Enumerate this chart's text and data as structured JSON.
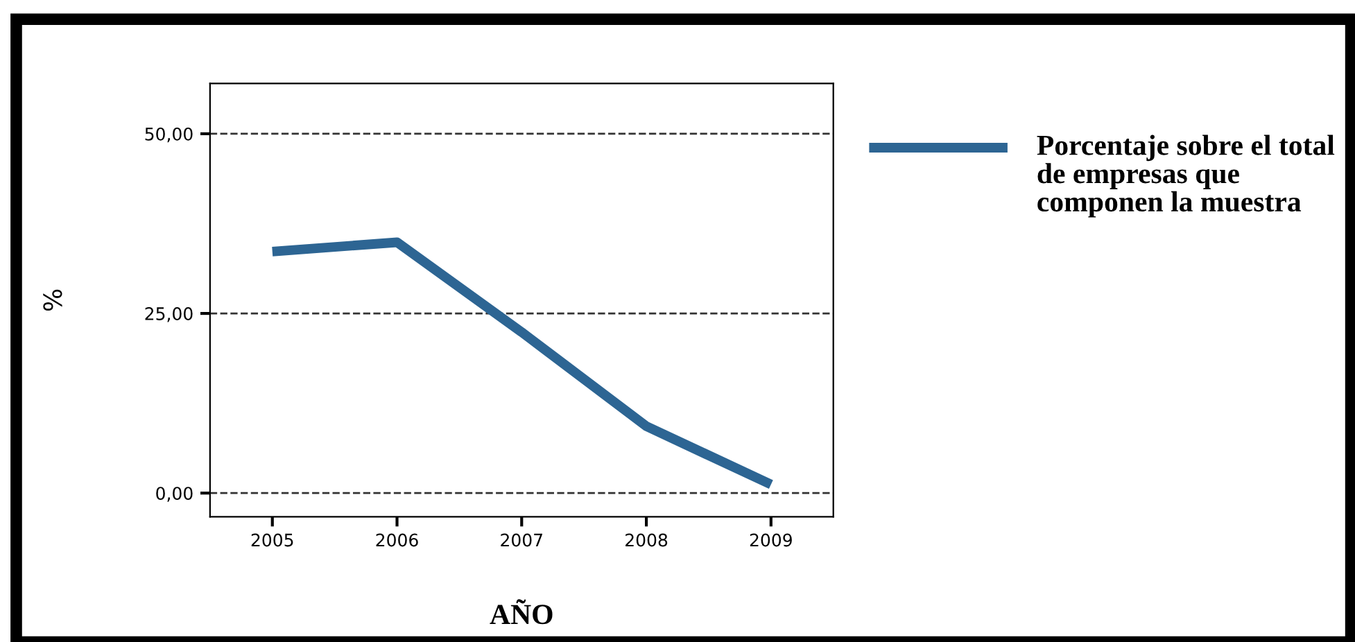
{
  "chart_data": {
    "type": "line",
    "xlabel": "AÑO",
    "ylabel": "%",
    "categories": [
      "2005",
      "2006",
      "2007",
      "2008",
      "2009"
    ],
    "series": [
      {
        "name": "Porcentaje sobre el total de empresas que componen la muestra",
        "color": "#2d6593",
        "values": [
          33.6,
          34.9,
          22.4,
          9.3,
          1.2
        ]
      }
    ],
    "ylim": [
      -3.3,
      57
    ],
    "yticks": [
      {
        "value": 0,
        "label": "0,00"
      },
      {
        "value": 25,
        "label": "25,00"
      },
      {
        "value": 50,
        "label": "50,00"
      }
    ],
    "grid": "y",
    "legend": "right",
    "line_style": "solid",
    "marker": "none"
  }
}
